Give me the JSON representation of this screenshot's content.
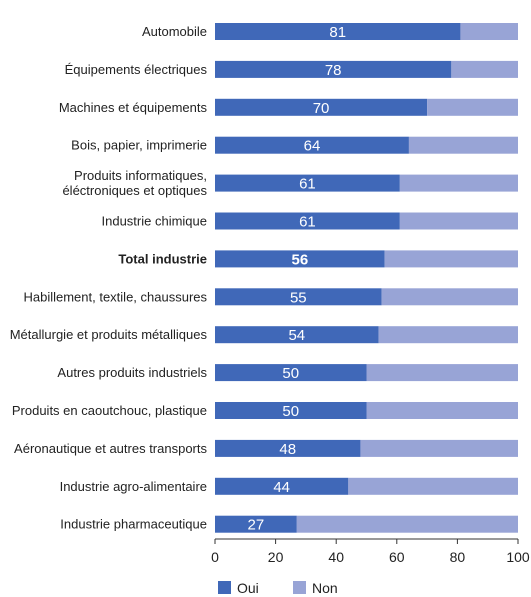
{
  "chart_data": {
    "type": "bar",
    "orientation": "horizontal",
    "stacked": true,
    "categories": [
      [
        "Automobile"
      ],
      [
        "Équipements électriques"
      ],
      [
        "Machines et équipements"
      ],
      [
        "Bois, papier, imprimerie"
      ],
      [
        "Produits informatiques,",
        "éléctroniques et optiques"
      ],
      [
        "Industrie chimique"
      ],
      [
        "Total industrie"
      ],
      [
        "Habillement, textile, chaussures"
      ],
      [
        "Métallurgie et produits métalliques"
      ],
      [
        "Autres produits industriels"
      ],
      [
        "Produits en caoutchouc, plastique"
      ],
      [
        "Aéronautique et autres transports"
      ],
      [
        "Industrie agro-alimentaire"
      ],
      [
        "Industrie pharmaceutique"
      ]
    ],
    "highlight_category_index": 6,
    "series": [
      {
        "name": "Oui",
        "color": "#4068b8",
        "values": [
          81,
          78,
          70,
          64,
          61,
          61,
          56,
          55,
          54,
          50,
          50,
          48,
          44,
          27
        ]
      },
      {
        "name": "Non",
        "color": "#98a4d6",
        "values": [
          19,
          22,
          30,
          36,
          39,
          39,
          44,
          45,
          46,
          50,
          50,
          52,
          56,
          73
        ]
      }
    ],
    "data_labels": [
      "81",
      "78",
      "70",
      "64",
      "61",
      "61",
      "56",
      "55",
      "54",
      "50",
      "50",
      "48",
      "44",
      "27"
    ],
    "x_ticks": [
      0,
      20,
      40,
      60,
      80,
      100
    ],
    "xlim": [
      0,
      100
    ],
    "grid": false,
    "legend_position": "bottom-left"
  }
}
